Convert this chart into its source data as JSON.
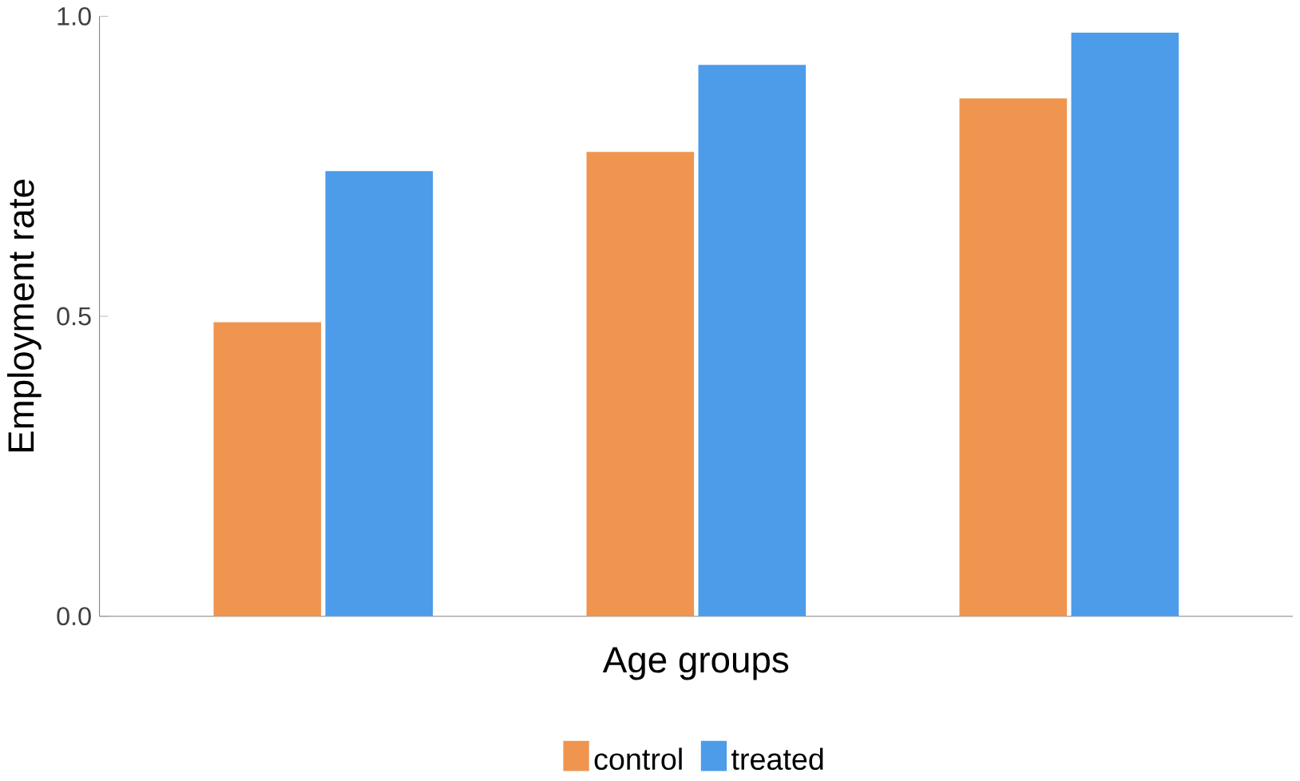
{
  "chart_data": {
    "type": "bar",
    "xlabel": "Age groups",
    "ylabel": "Employment rate",
    "categories": [
      null,
      null,
      null
    ],
    "series": [
      {
        "name": "control",
        "color": "#ef9550",
        "values": [
          0.49,
          0.774,
          0.863
        ]
      },
      {
        "name": "treated",
        "color": "#4c9ce9",
        "values": [
          0.742,
          0.919,
          0.973
        ]
      }
    ],
    "ylim": [
      0,
      1
    ],
    "yticks": [
      {
        "value": 0,
        "label": "0.0"
      },
      {
        "value": 0.5,
        "label": "0.5"
      },
      {
        "value": 1,
        "label": "1.0"
      }
    ],
    "grid": false,
    "legend": "bottom"
  }
}
